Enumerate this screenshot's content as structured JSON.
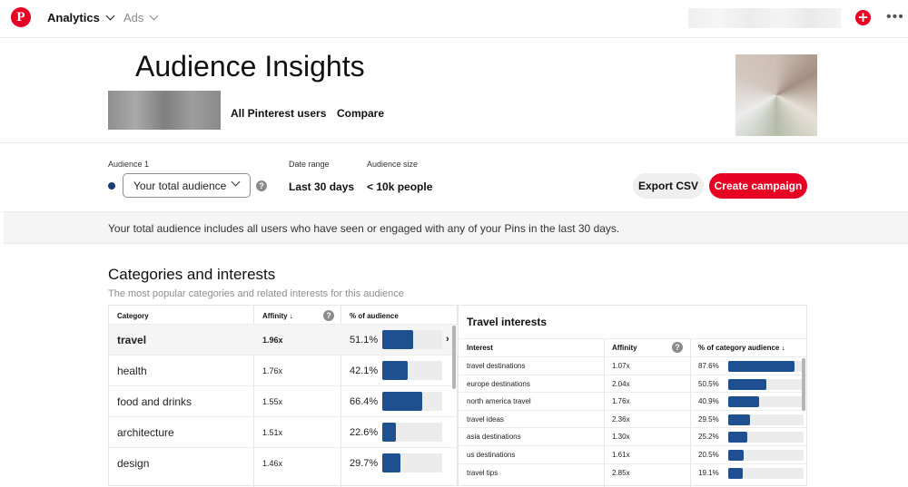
{
  "topbar": {
    "logo_glyph": "P",
    "analytics_label": "Analytics",
    "ads_label": "Ads",
    "plus_glyph": "+",
    "more_glyph": "•••"
  },
  "header": {
    "title": "Audience Insights",
    "tabs": [
      "All Pinterest users",
      "Compare"
    ]
  },
  "filters": {
    "audience_label": "Audience 1",
    "audience_value": "Your total audience",
    "date_label": "Date range",
    "date_value": "Last 30 days",
    "size_label": "Audience size",
    "size_value": "< 10k people",
    "export_label": "Export CSV",
    "create_label": "Create campaign",
    "help_glyph": "?"
  },
  "banner": {
    "text": "Your total audience includes all users who have seen or engaged with any of your Pins in the last 30 days."
  },
  "categories": {
    "title": "Categories and interests",
    "subtitle": "The most popular categories and related interests for this audience",
    "columns": [
      "Category",
      "Affinity ↓",
      "% of audience"
    ],
    "rows": [
      {
        "name": "travel",
        "affinity": "1.96x",
        "pct": "51.1%",
        "value": 51.1
      },
      {
        "name": "health",
        "affinity": "1.76x",
        "pct": "42.1%",
        "value": 42.1
      },
      {
        "name": "food and drinks",
        "affinity": "1.55x",
        "pct": "66.4%",
        "value": 66.4
      },
      {
        "name": "architecture",
        "affinity": "1.51x",
        "pct": "22.6%",
        "value": 22.6
      },
      {
        "name": "design",
        "affinity": "1.46x",
        "pct": "29.7%",
        "value": 29.7
      }
    ],
    "next_glyph": "›"
  },
  "interests": {
    "title": "Travel interests",
    "columns": [
      "Interest",
      "Affinity",
      "% of category audience ↓"
    ],
    "rows": [
      {
        "name": "travel destinations",
        "affinity": "1.07x",
        "pct": "87.6%",
        "value": 87.6
      },
      {
        "name": "europe destinations",
        "affinity": "2.04x",
        "pct": "50.5%",
        "value": 50.5
      },
      {
        "name": "north america travel",
        "affinity": "1.76x",
        "pct": "40.9%",
        "value": 40.9
      },
      {
        "name": "travel ideas",
        "affinity": "2.36x",
        "pct": "29.5%",
        "value": 29.5
      },
      {
        "name": "asia destinations",
        "affinity": "1.30x",
        "pct": "25.2%",
        "value": 25.2
      },
      {
        "name": "us destinations",
        "affinity": "1.61x",
        "pct": "20.5%",
        "value": 20.5
      },
      {
        "name": "travel tips",
        "affinity": "2.85x",
        "pct": "19.1%",
        "value": 19.1
      }
    ]
  },
  "colors": {
    "brand_red": "#e60023",
    "bar_blue": "#1d4f91",
    "audience_dot": "#1d3c78"
  }
}
